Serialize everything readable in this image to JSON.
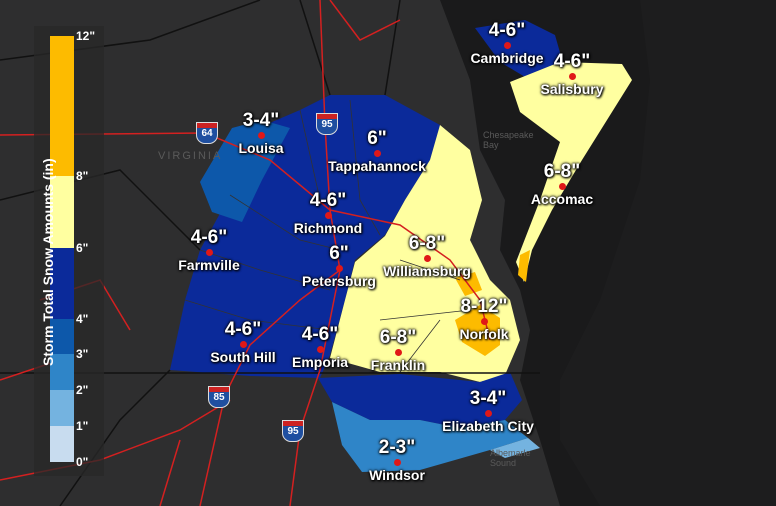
{
  "legend": {
    "title": "Storm Total Snow Amounts (in)",
    "bins": [
      {
        "from": 8,
        "to": 12,
        "color": "#fdbb00"
      },
      {
        "from": 6,
        "to": 8,
        "color": "#ffffa0"
      },
      {
        "from": 4,
        "to": 6,
        "color": "#0b2a9a"
      },
      {
        "from": 3,
        "to": 4,
        "color": "#0d58aa"
      },
      {
        "from": 2,
        "to": 3,
        "color": "#2f85c8"
      },
      {
        "from": 1,
        "to": 2,
        "color": "#74b3e0"
      },
      {
        "from": 0,
        "to": 1,
        "color": "#c8dcef"
      }
    ],
    "ticks": [
      "12\"",
      "8\"",
      "6\"",
      "4\"",
      "3\"",
      "2\"",
      "1\"",
      "0\""
    ]
  },
  "map_labels": {
    "state": "VIRGINIA",
    "bay": "Chesapeake Bay",
    "sound": "Albemarle Sound"
  },
  "interstates": [
    "64",
    "95",
    "85",
    "95"
  ],
  "locations": [
    {
      "city": "Cambridge",
      "amount": "4-6\""
    },
    {
      "city": "Salisbury",
      "amount": "4-6\""
    },
    {
      "city": "Louisa",
      "amount": "3-4\""
    },
    {
      "city": "Tappahannock",
      "amount": "6\""
    },
    {
      "city": "Accomac",
      "amount": "6-8\""
    },
    {
      "city": "Richmond",
      "amount": "4-6\""
    },
    {
      "city": "Farmville",
      "amount": "4-6\""
    },
    {
      "city": "Petersburg",
      "amount": "6\""
    },
    {
      "city": "Williamsburg",
      "amount": "6-8\""
    },
    {
      "city": "Norfolk",
      "amount": "8-12\""
    },
    {
      "city": "South Hill",
      "amount": "4-6\""
    },
    {
      "city": "Emporia",
      "amount": "4-6\""
    },
    {
      "city": "Franklin",
      "amount": "6-8\""
    },
    {
      "city": "Elizabeth City",
      "amount": "3-4\""
    },
    {
      "city": "Windsor",
      "amount": "2-3\""
    }
  ]
}
